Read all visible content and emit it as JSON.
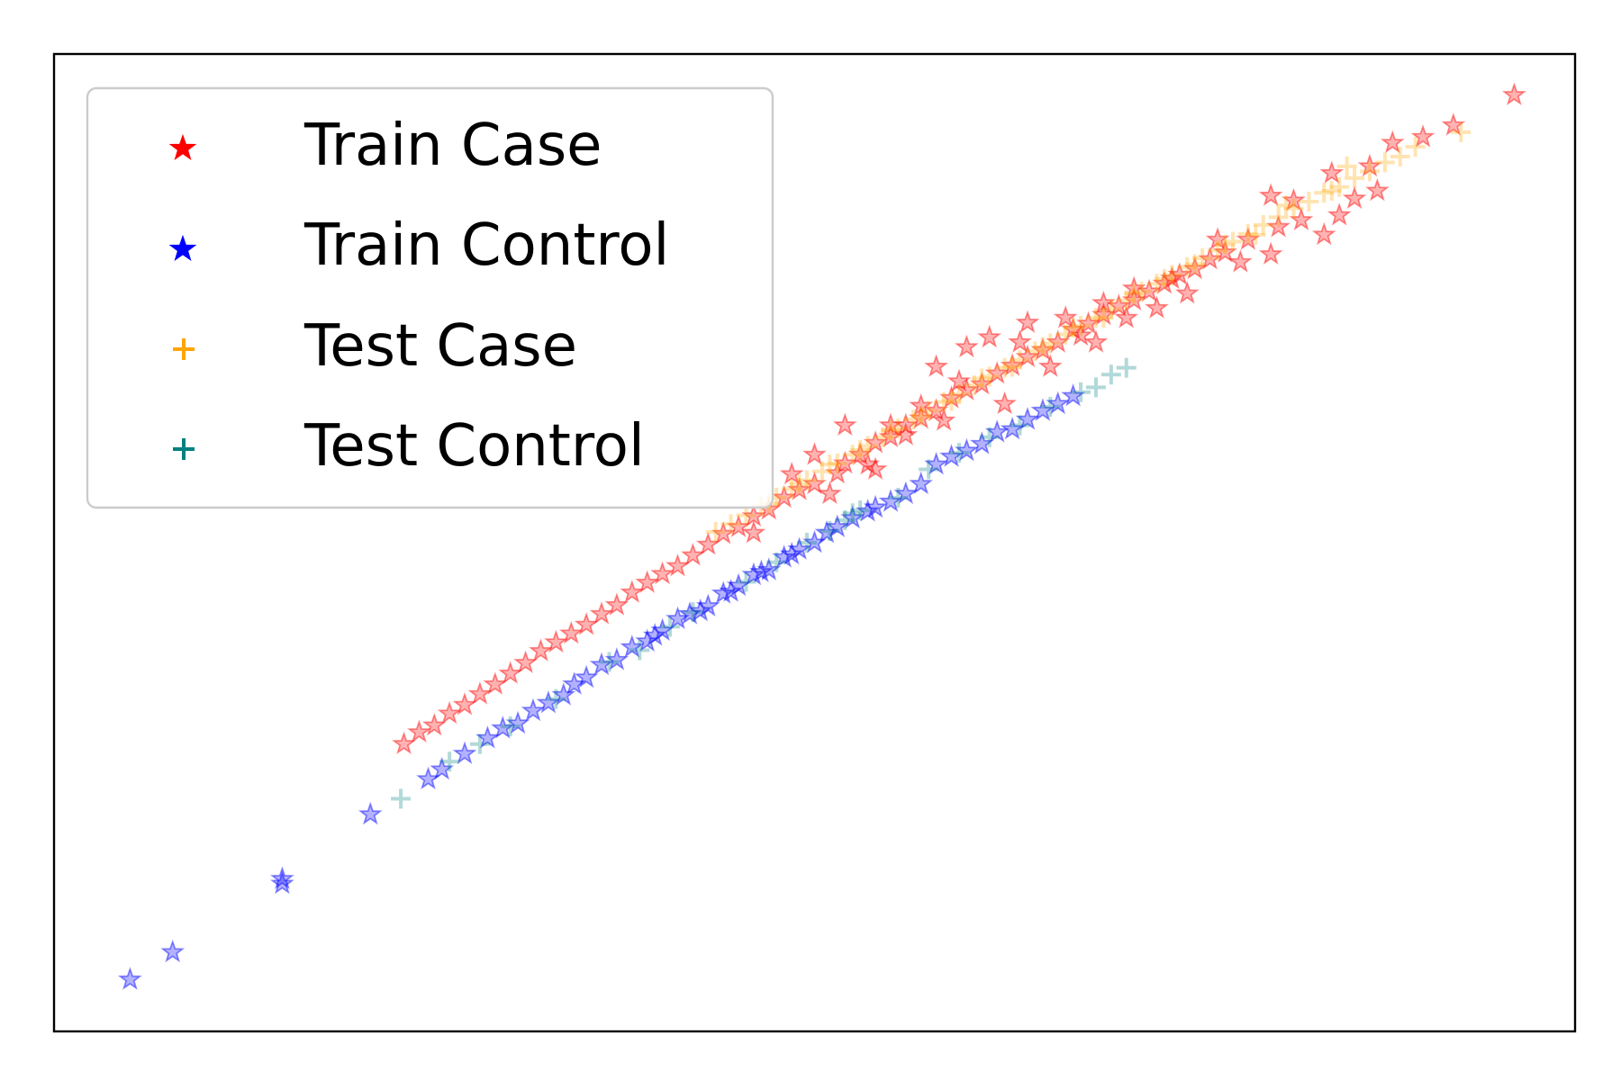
{
  "chart_data": {
    "type": "scatter",
    "title": "",
    "xlabel": "",
    "ylabel": "",
    "xlim": [
      0,
      100
    ],
    "ylim": [
      0,
      100
    ],
    "grid": false,
    "ticks_visible": false,
    "legend_position": "top-left",
    "series": [
      {
        "name": "Train Case",
        "marker": "star",
        "color": "#ff0000",
        "points": [
          [
            96.0,
            95.8
          ],
          [
            92.0,
            92.7
          ],
          [
            90.0,
            91.5
          ],
          [
            88.0,
            90.9
          ],
          [
            86.5,
            88.5
          ],
          [
            84.0,
            87.8
          ],
          [
            81.5,
            85.0
          ],
          [
            80.0,
            85.5
          ],
          [
            82.0,
            83.0
          ],
          [
            80.5,
            82.3
          ],
          [
            78.5,
            81.0
          ],
          [
            77.0,
            79.7
          ],
          [
            76.0,
            79.0
          ],
          [
            75.0,
            78.0
          ],
          [
            74.0,
            77.4
          ],
          [
            73.0,
            76.5
          ],
          [
            72.0,
            75.7
          ],
          [
            71.0,
            74.8
          ],
          [
            70.0,
            74.2
          ],
          [
            69.0,
            73.3
          ],
          [
            68.0,
            72.4
          ],
          [
            67.0,
            71.8
          ],
          [
            66.0,
            70.5
          ],
          [
            65.0,
            69.7
          ],
          [
            64.0,
            69.0
          ],
          [
            63.0,
            68.1
          ],
          [
            62.0,
            67.3
          ],
          [
            61.0,
            66.2
          ],
          [
            60.0,
            65.6
          ],
          [
            59.0,
            64.8
          ],
          [
            58.0,
            63.5
          ],
          [
            57.0,
            62.7
          ],
          [
            56.0,
            62.0
          ],
          [
            55.0,
            60.8
          ],
          [
            54.0,
            60.2
          ],
          [
            53.0,
            59.0
          ],
          [
            52.0,
            58.1
          ],
          [
            51.5,
            57.1
          ],
          [
            50.0,
            56.0
          ],
          [
            49.0,
            55.4
          ],
          [
            48.0,
            54.6
          ],
          [
            47.0,
            53.4
          ],
          [
            46.0,
            52.7
          ],
          [
            45.0,
            51.6
          ],
          [
            44.0,
            50.9
          ],
          [
            43.0,
            49.8
          ],
          [
            42.0,
            48.7
          ],
          [
            41.0,
            47.6
          ],
          [
            40.0,
            46.8
          ],
          [
            39.0,
            45.9
          ],
          [
            38.0,
            44.9
          ],
          [
            37.0,
            43.6
          ],
          [
            36.0,
            42.7
          ],
          [
            35.0,
            41.6
          ],
          [
            34.0,
            40.7
          ],
          [
            33.0,
            39.8
          ],
          [
            32.0,
            38.9
          ],
          [
            31.0,
            37.7
          ],
          [
            30.0,
            36.6
          ],
          [
            29.0,
            35.5
          ],
          [
            28.0,
            34.5
          ],
          [
            27.0,
            33.4
          ],
          [
            26.0,
            32.5
          ],
          [
            25.0,
            31.3
          ],
          [
            24.0,
            30.6
          ],
          [
            23.0,
            29.4
          ],
          [
            64.0,
            72.5
          ],
          [
            61.5,
            71.0
          ],
          [
            60.0,
            70.0
          ],
          [
            58.0,
            68.0
          ],
          [
            57.0,
            64.0
          ],
          [
            56.0,
            61.0
          ],
          [
            55.0,
            62.0
          ],
          [
            54.0,
            57.5
          ],
          [
            52.0,
            62.0
          ],
          [
            50.0,
            59.0
          ],
          [
            48.5,
            57.0
          ],
          [
            46.0,
            51.0
          ],
          [
            67.5,
            71.2
          ],
          [
            69.0,
            74.5
          ],
          [
            71.0,
            76.0
          ],
          [
            73.5,
            77.0
          ],
          [
            76.5,
            81.0
          ],
          [
            78.0,
            78.7
          ],
          [
            80.0,
            79.5
          ],
          [
            83.5,
            81.5
          ],
          [
            84.5,
            83.5
          ],
          [
            85.5,
            85.2
          ],
          [
            87.0,
            86.0
          ],
          [
            62.5,
            64.2
          ],
          [
            65.5,
            68.0
          ],
          [
            68.5,
            70.5
          ],
          [
            70.5,
            73.0
          ],
          [
            72.5,
            74.0
          ],
          [
            74.5,
            75.5
          ],
          [
            59.5,
            66.5
          ],
          [
            63.5,
            70.5
          ],
          [
            66.5,
            73.0
          ],
          [
            58.5,
            62.5
          ],
          [
            53.5,
            58.0
          ],
          [
            51.0,
            55.0
          ]
        ]
      },
      {
        "name": "Train Control",
        "marker": "star",
        "color": "#0000ff",
        "points": [
          [
            5.0,
            5.3
          ],
          [
            7.8,
            8.1
          ],
          [
            15.0,
            15.6
          ],
          [
            15.0,
            15.1
          ],
          [
            20.8,
            22.2
          ],
          [
            24.6,
            25.8
          ],
          [
            25.5,
            26.8
          ],
          [
            27.0,
            28.4
          ],
          [
            28.5,
            30.0
          ],
          [
            29.5,
            31.0
          ],
          [
            30.5,
            31.5
          ],
          [
            31.5,
            32.8
          ],
          [
            32.5,
            33.6
          ],
          [
            35.0,
            36.2
          ],
          [
            36.0,
            37.5
          ],
          [
            37.0,
            38.0
          ],
          [
            38.0,
            39.3
          ],
          [
            39.0,
            39.9
          ],
          [
            40.0,
            41.0
          ],
          [
            41.0,
            42.2
          ],
          [
            41.8,
            42.7
          ],
          [
            43.0,
            43.5
          ],
          [
            44.0,
            44.8
          ],
          [
            45.0,
            45.6
          ],
          [
            46.0,
            46.7
          ],
          [
            47.0,
            47.2
          ],
          [
            48.0,
            48.5
          ],
          [
            49.0,
            49.3
          ],
          [
            50.0,
            50.0
          ],
          [
            50.8,
            51.0
          ],
          [
            51.5,
            51.6
          ],
          [
            52.5,
            52.5
          ],
          [
            53.5,
            53.2
          ],
          [
            54.0,
            53.6
          ],
          [
            55.0,
            54.2
          ],
          [
            56.0,
            55.0
          ],
          [
            57.0,
            56.0
          ],
          [
            58.0,
            58.0
          ],
          [
            59.0,
            58.8
          ],
          [
            60.0,
            59.4
          ],
          [
            61.0,
            60.1
          ],
          [
            62.0,
            61.3
          ],
          [
            63.0,
            61.6
          ],
          [
            64.0,
            62.6
          ],
          [
            65.0,
            63.5
          ],
          [
            66.0,
            64.2
          ],
          [
            67.0,
            65.0
          ],
          [
            33.5,
            34.4
          ],
          [
            34.2,
            35.5
          ],
          [
            39.5,
            40.5
          ],
          [
            42.5,
            43.0
          ],
          [
            44.5,
            45.0
          ],
          [
            46.5,
            47.0
          ],
          [
            48.5,
            48.8
          ]
        ]
      },
      {
        "name": "Test Case",
        "marker": "plus",
        "color": "#ffa500",
        "points": [
          [
            92.5,
            92.0
          ],
          [
            89.5,
            90.5
          ],
          [
            88.5,
            89.5
          ],
          [
            87.5,
            88.9
          ],
          [
            86.5,
            88.0
          ],
          [
            85.5,
            87.3
          ],
          [
            84.5,
            86.4
          ],
          [
            83.5,
            85.8
          ],
          [
            82.5,
            84.9
          ],
          [
            81.5,
            84.2
          ],
          [
            80.5,
            83.3
          ],
          [
            79.5,
            82.5
          ],
          [
            78.5,
            81.6
          ],
          [
            77.5,
            80.8
          ],
          [
            76.5,
            79.9
          ],
          [
            75.5,
            79.1
          ],
          [
            74.5,
            78.2
          ],
          [
            73.5,
            77.4
          ],
          [
            72.5,
            76.5
          ],
          [
            71.5,
            75.7
          ],
          [
            70.5,
            74.8
          ],
          [
            69.5,
            73.9
          ],
          [
            68.5,
            73.0
          ],
          [
            67.5,
            72.2
          ],
          [
            66.5,
            71.3
          ],
          [
            65.5,
            70.4
          ],
          [
            64.5,
            69.6
          ],
          [
            63.5,
            68.7
          ],
          [
            62.5,
            67.9
          ],
          [
            61.5,
            67.0
          ],
          [
            60.5,
            66.1
          ],
          [
            59.5,
            65.2
          ],
          [
            58.5,
            64.4
          ],
          [
            57.5,
            63.5
          ],
          [
            56.5,
            62.6
          ],
          [
            55.5,
            61.7
          ],
          [
            54.5,
            60.8
          ],
          [
            53.5,
            59.9
          ],
          [
            52.5,
            59.0
          ],
          [
            51.5,
            58.1
          ],
          [
            50.5,
            57.3
          ],
          [
            49.5,
            56.4
          ],
          [
            48.5,
            55.5
          ],
          [
            47.5,
            54.6
          ],
          [
            46.5,
            53.7
          ],
          [
            45.5,
            52.8
          ],
          [
            44.5,
            51.9
          ],
          [
            43.5,
            51.1
          ],
          [
            85.0,
            88.5
          ],
          [
            84.0,
            86.0
          ],
          [
            81.0,
            84.5
          ],
          [
            79.0,
            81.5
          ],
          [
            77.0,
            80.5
          ],
          [
            75.0,
            78.5
          ],
          [
            73.0,
            77.0
          ],
          [
            71.0,
            75.5
          ],
          [
            69.0,
            73.0
          ],
          [
            67.0,
            72.0
          ],
          [
            65.0,
            70.0
          ],
          [
            63.0,
            68.0
          ],
          [
            61.0,
            66.8
          ],
          [
            59.0,
            64.5
          ],
          [
            57.0,
            63.0
          ],
          [
            55.0,
            61.5
          ],
          [
            53.0,
            59.5
          ],
          [
            51.0,
            58.0
          ],
          [
            49.0,
            56.0
          ],
          [
            47.0,
            54.0
          ]
        ]
      },
      {
        "name": "Test Control",
        "marker": "plus",
        "color": "#008080",
        "points": [
          [
            22.8,
            23.8
          ],
          [
            26.0,
            27.6
          ],
          [
            28.0,
            29.4
          ],
          [
            30.0,
            31.2
          ],
          [
            33.0,
            34.0
          ],
          [
            36.5,
            37.8
          ],
          [
            38.5,
            39.0
          ],
          [
            40.5,
            41.4
          ],
          [
            42.0,
            42.9
          ],
          [
            45.5,
            46.0
          ],
          [
            47.5,
            48.0
          ],
          [
            49.5,
            50.0
          ],
          [
            51.0,
            51.2
          ],
          [
            52.0,
            52.3
          ],
          [
            53.0,
            53.3
          ],
          [
            55.5,
            54.6
          ],
          [
            57.5,
            57.5
          ],
          [
            59.5,
            59.2
          ],
          [
            61.5,
            60.8
          ],
          [
            63.5,
            62.0
          ],
          [
            65.5,
            63.9
          ],
          [
            67.5,
            65.4
          ],
          [
            68.5,
            65.9
          ],
          [
            69.5,
            67.2
          ],
          [
            70.5,
            67.9
          ],
          [
            52.5,
            53.0
          ]
        ]
      }
    ]
  }
}
